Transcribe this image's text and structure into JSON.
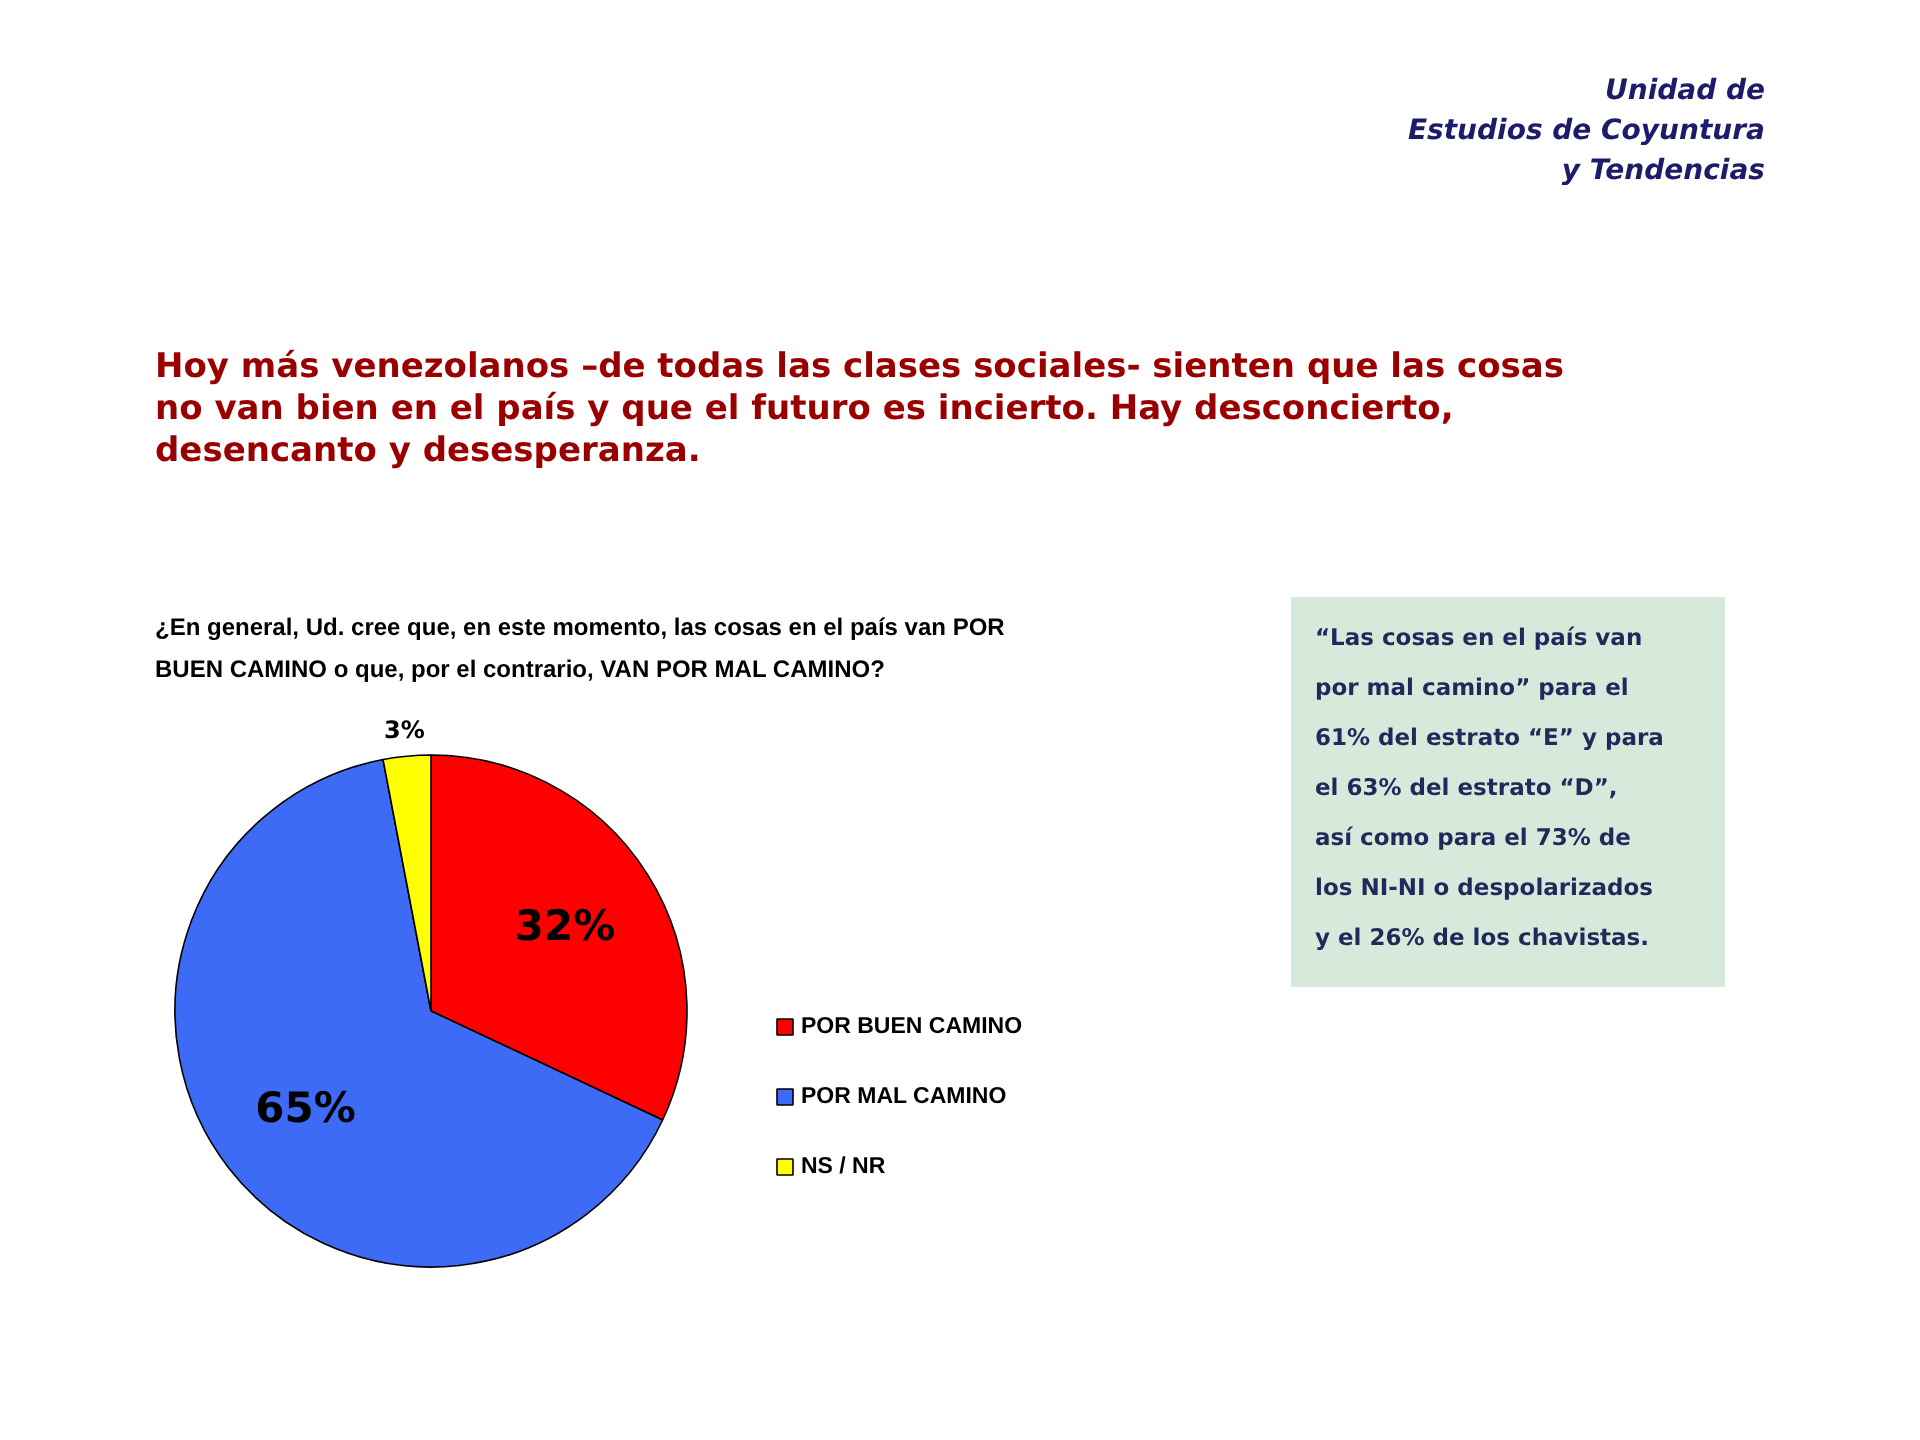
{
  "chart_data": {
    "type": "pie",
    "title": "Hoy más venezolanos –de todas las clases sociales- sienten que las cosas no van bien en el país y que el futuro es incierto. Hay desconcierto, desencanto y desesperanza.",
    "subtitle": "¿En general, Ud. cree que, en este momento, las cosas en el país van POR BUEN CAMINO o que, por el contrario, VAN POR MAL CAMINO?",
    "categories": [
      "POR BUEN CAMINO",
      "POR MAL CAMINO",
      "NS / NR"
    ],
    "values": [
      32,
      65,
      3
    ],
    "colors": [
      "#ff0000",
      "#3d6bf5",
      "#ffff00"
    ],
    "value_labels": [
      "32%",
      "65%",
      "3%"
    ],
    "legend": "right",
    "annotations": [
      "Unidad de\nEstudios de Coyuntura\ny Tendencias",
      "“Las cosas en el país van por mal camino” para el 61% del estrato “E” y para el 63% del estrato “D”, así como para el 73% de los NI-NI o despolarizados y el 26% de los chavistas."
    ]
  }
}
